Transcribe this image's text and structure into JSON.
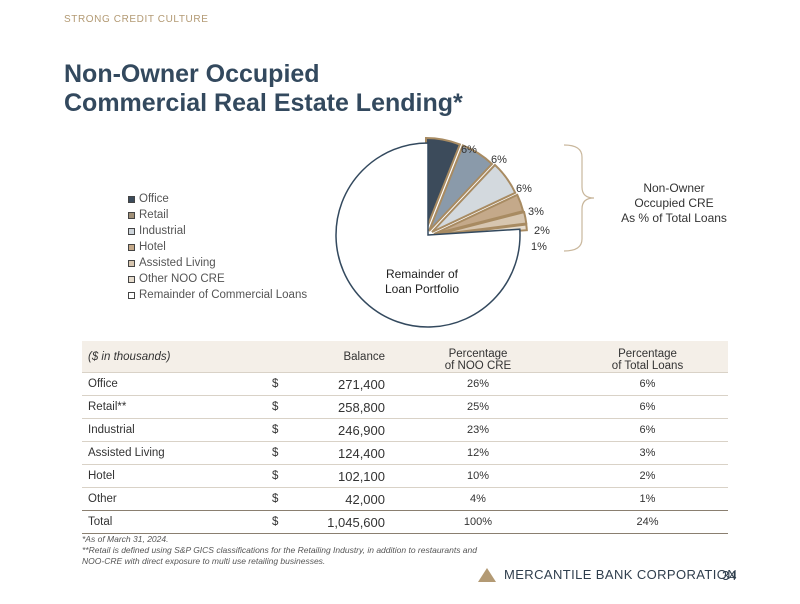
{
  "header": {
    "kicker": "STRONG CREDIT CULTURE",
    "title_line1": "Non-Owner Occupied",
    "title_line2": "Commercial Real Estate Lending*"
  },
  "legend": [
    {
      "label": "Office",
      "color": "#3c4b5b"
    },
    {
      "label": "Retail",
      "color": "#a09078"
    },
    {
      "label": "Industrial",
      "color": "#cdd4da"
    },
    {
      "label": "Hotel",
      "color": "#c4a98a"
    },
    {
      "label": "Assisted Living",
      "color": "#d7c6b0"
    },
    {
      "label": "Other NOO CRE",
      "color": "#e6dccd"
    },
    {
      "label": "Remainder of Commercial Loans",
      "color": "#ffffff"
    }
  ],
  "chart_data": {
    "type": "pie",
    "slices": [
      {
        "name": "Office",
        "value": 6,
        "label": "6%",
        "color": "#3c4b5b"
      },
      {
        "name": "Retail",
        "value": 6,
        "label": "6%",
        "color": "#8a9aaa"
      },
      {
        "name": "Industrial",
        "value": 6,
        "label": "6%",
        "color": "#d3d9de"
      },
      {
        "name": "Assisted Living",
        "value": 3,
        "label": "3%",
        "color": "#c4a98a"
      },
      {
        "name": "Hotel",
        "value": 2,
        "label": "2%",
        "color": "#d7c6b0"
      },
      {
        "name": "Other NOO CRE",
        "value": 1,
        "label": "1%",
        "color": "#e6dccd"
      },
      {
        "name": "Remainder of Commercial Loans",
        "value": 76,
        "label": "",
        "color": "#ffffff"
      }
    ],
    "remainder_label_line1": "Remainder of",
    "remainder_label_line2": "Loan Portfolio",
    "slice_border_color": "#a88b62",
    "remainder_border_color": "#33495e"
  },
  "brace_label": {
    "line1": "Non-Owner",
    "line2": "Occupied CRE",
    "line3": "As % of Total Loans"
  },
  "table": {
    "caption": "($ in thousands)",
    "col_balance": "Balance",
    "col_pct_noo_line1": "Percentage",
    "col_pct_noo_line2": "of NOO CRE",
    "col_pct_total_line1": "Percentage",
    "col_pct_total_line2": "of Total Loans",
    "rows": [
      {
        "name": "Office",
        "dollar": "$",
        "balance": "271,400",
        "pct_noo": "26%",
        "pct_total": "6%"
      },
      {
        "name": "Retail**",
        "dollar": "$",
        "balance": "258,800",
        "pct_noo": "25%",
        "pct_total": "6%"
      },
      {
        "name": "Industrial",
        "dollar": "$",
        "balance": "246,900",
        "pct_noo": "23%",
        "pct_total": "6%"
      },
      {
        "name": "Assisted Living",
        "dollar": "$",
        "balance": "124,400",
        "pct_noo": "12%",
        "pct_total": "3%"
      },
      {
        "name": "Hotel",
        "dollar": "$",
        "balance": "102,100",
        "pct_noo": "10%",
        "pct_total": "2%"
      },
      {
        "name": "Other",
        "dollar": "$",
        "balance": "42,000",
        "pct_noo": "4%",
        "pct_total": "1%"
      }
    ],
    "total": {
      "name": "Total",
      "dollar": "$",
      "balance": "1,045,600",
      "pct_noo": "100%",
      "pct_total": "24%"
    }
  },
  "footnotes": {
    "line1": "*As of March 31, 2024.",
    "line2": "**Retail is defined using S&P GICS classifications for the Retailing Industry, in addition to restaurants and",
    "line3": "NOO-CRE with direct exposure to multi use retailing businesses."
  },
  "footer": {
    "brand": "MERCANTILE BANK CORPORATION",
    "page": "34",
    "accent_color": "#b39a74"
  }
}
